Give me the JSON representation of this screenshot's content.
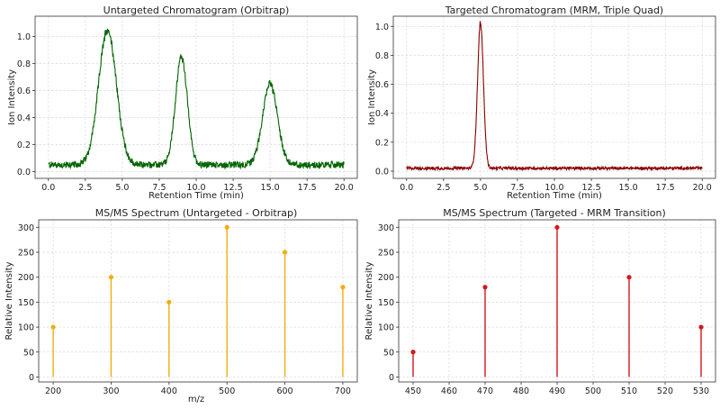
{
  "chart_data": [
    {
      "type": "line",
      "title": "Untargeted Chromatogram (Orbitrap)",
      "xlabel": "Retention Time (min)",
      "ylabel": "Ion Intensity",
      "xlim": [
        -0.9,
        20.9
      ],
      "ylim": [
        -0.05,
        1.15
      ],
      "xticks": [
        "0.0",
        "2.5",
        "5.0",
        "7.5",
        "10.0",
        "12.5",
        "15.0",
        "17.5",
        "20.0"
      ],
      "yticks": [
        "0.0",
        "0.2",
        "0.4",
        "0.6",
        "0.8",
        "1.0"
      ],
      "grid": true,
      "color": "#006400",
      "baseline": 0.05,
      "noise": 0.05,
      "peaks": [
        {
          "x": 4,
          "height": 1.0,
          "width": 0.6
        },
        {
          "x": 9,
          "height": 0.8,
          "width": 0.4
        },
        {
          "x": 15,
          "height": 0.6,
          "width": 0.5
        }
      ]
    },
    {
      "type": "line",
      "title": "Targeted Chromatogram (MRM, Triple Quad)",
      "xlabel": "Retention Time (min)",
      "ylabel": "Ion Intensity",
      "xlim": [
        -0.9,
        20.9
      ],
      "ylim": [
        -0.05,
        1.07
      ],
      "xticks": [
        "0.0",
        "2.5",
        "5.0",
        "7.5",
        "10.0",
        "12.5",
        "15.0",
        "17.5",
        "20.0"
      ],
      "yticks": [
        "0.0",
        "0.2",
        "0.4",
        "0.6",
        "0.8",
        "1.0"
      ],
      "grid": true,
      "color": "#8b0000",
      "baseline": 0.02,
      "noise": 0.02,
      "peaks": [
        {
          "x": 5,
          "height": 1.0,
          "width": 0.2
        }
      ]
    },
    {
      "type": "stem",
      "title": "MS/MS Spectrum (Untargeted - Orbitrap)",
      "xlabel": "m/z",
      "ylabel": "Relative Intensity",
      "xlim": [
        175,
        725
      ],
      "ylim": [
        -10,
        315
      ],
      "xticks": [
        "200",
        "300",
        "400",
        "500",
        "600",
        "700"
      ],
      "yticks": [
        "0",
        "50",
        "100",
        "150",
        "200",
        "250",
        "300"
      ],
      "grid": true,
      "color": "#f0ad10",
      "x": [
        200,
        300,
        400,
        500,
        600,
        700
      ],
      "values": [
        100,
        200,
        150,
        300,
        250,
        180
      ]
    },
    {
      "type": "stem",
      "title": "MS/MS Spectrum (Targeted - MRM Transition)",
      "xlabel": "",
      "ylabel": "Relative Intensity",
      "xlim": [
        446,
        534
      ],
      "ylim": [
        -10,
        315
      ],
      "xticks": [
        "450",
        "460",
        "470",
        "480",
        "490",
        "500",
        "510",
        "520",
        "530"
      ],
      "yticks": [
        "0",
        "50",
        "100",
        "150",
        "200",
        "250",
        "300"
      ],
      "grid": true,
      "color": "#d11a1a",
      "x": [
        450,
        470,
        490,
        510,
        530
      ],
      "values": [
        50,
        180,
        300,
        200,
        100
      ]
    }
  ]
}
